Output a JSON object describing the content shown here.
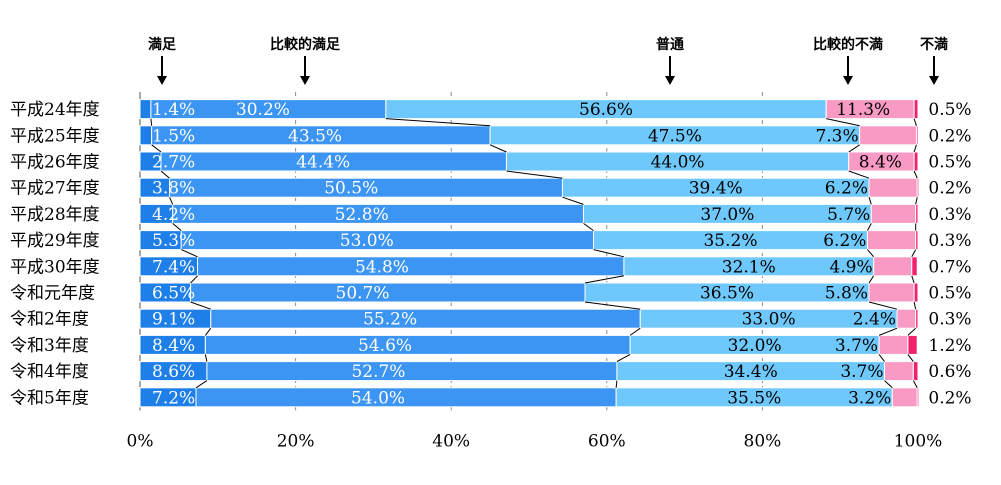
{
  "chart_data": {
    "type": "bar",
    "orientation": "horizontal",
    "stacked": "percent",
    "categories": [
      "平成24年度",
      "平成25年度",
      "平成26年度",
      "平成27年度",
      "平成28年度",
      "平成29年度",
      "平成30年度",
      "令和元年度",
      "令和2年度",
      "令和3年度",
      "令和4年度",
      "令和5年度"
    ],
    "series": [
      {
        "name": "満足",
        "color": "#1e7fe8",
        "values": [
          1.4,
          1.5,
          2.7,
          3.8,
          4.2,
          5.3,
          7.4,
          6.5,
          9.1,
          8.4,
          8.6,
          7.2
        ],
        "labels": [
          "1.4%",
          "1.5%",
          "2.7%",
          "3.8%",
          "4.2%",
          "5.3%",
          "7.4%",
          "6.5%",
          "9.1%",
          "8.4%",
          "8.6%",
          "7.2%"
        ]
      },
      {
        "name": "比較的満足",
        "color": "#3c95f2",
        "values": [
          30.2,
          43.5,
          44.4,
          50.5,
          52.8,
          53.0,
          54.8,
          50.7,
          55.2,
          54.6,
          52.7,
          54.0
        ],
        "labels": [
          "30.2%",
          "43.5%",
          "44.4%",
          "50.5%",
          "52.8%",
          "53.0%",
          "54.8%",
          "50.7%",
          "55.2%",
          "54.6%",
          "52.7%",
          "54.0%"
        ]
      },
      {
        "name": "普通",
        "color": "#6ec8fb",
        "values": [
          56.6,
          47.5,
          44.0,
          39.4,
          37.0,
          35.2,
          32.1,
          36.5,
          33.0,
          32.0,
          34.4,
          35.5
        ],
        "labels": [
          "56.6%",
          "47.5%",
          "44.0%",
          "39.4%",
          "37.0%",
          "35.2%",
          "32.1%",
          "36.5%",
          "33.0%",
          "32.0%",
          "34.4%",
          "35.5%"
        ]
      },
      {
        "name": "比較的不満",
        "color": "#f99ac4",
        "values": [
          11.3,
          7.3,
          8.4,
          6.2,
          5.7,
          6.2,
          4.9,
          5.8,
          2.4,
          3.7,
          3.7,
          3.2
        ],
        "labels": [
          "11.3%",
          "7.3%",
          "8.4%",
          "6.2%",
          "5.7%",
          "6.2%",
          "4.9%",
          "5.8%",
          "2.4%",
          "3.7%",
          "3.7%",
          "3.2%"
        ]
      },
      {
        "name": "不満",
        "color": "#f0226e",
        "values": [
          0.5,
          0.2,
          0.5,
          0.2,
          0.3,
          0.3,
          0.7,
          0.5,
          0.3,
          1.2,
          0.6,
          0.2
        ],
        "labels": [
          "0.5%",
          "0.2%",
          "0.5%",
          "0.2%",
          "0.3%",
          "0.3%",
          "0.7%",
          "0.5%",
          "0.3%",
          "1.2%",
          "0.6%",
          "0.2%"
        ]
      }
    ],
    "xlim": [
      0,
      100
    ],
    "x_ticks": [
      "0%",
      "20%",
      "40%",
      "60%",
      "80%",
      "100%"
    ],
    "grid": "vertical dashed",
    "legend": "top, arrows pointing to segments"
  }
}
